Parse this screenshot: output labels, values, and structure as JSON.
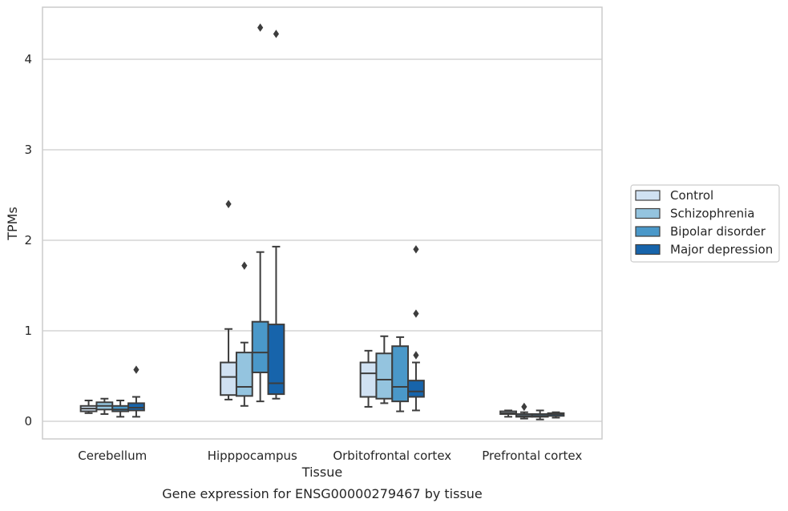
{
  "chart_data": {
    "type": "box",
    "caption": "Gene expression for ENSG00000279467 by tissue",
    "xlabel": "Tissue",
    "ylabel": "TPMs",
    "ylim": [
      -0.19,
      4.6
    ],
    "yticks": [
      0,
      1,
      2,
      3,
      4
    ],
    "grid": "horizontal",
    "legend_position": "right",
    "categories": [
      "Cerebellum",
      "Hipppocampus",
      "Orbitofrontal cortex",
      "Prefrontal cortex"
    ],
    "series": [
      {
        "name": "Control",
        "color": "#d0e1f2",
        "boxes": [
          {
            "low": 0.09,
            "q1": 0.11,
            "median": 0.14,
            "q3": 0.17,
            "high": 0.23,
            "outliers": []
          },
          {
            "low": 0.24,
            "q1": 0.29,
            "median": 0.49,
            "q3": 0.65,
            "high": 1.02,
            "outliers": [
              2.4
            ]
          },
          {
            "low": 0.16,
            "q1": 0.27,
            "median": 0.53,
            "q3": 0.65,
            "high": 0.78,
            "outliers": []
          },
          {
            "low": 0.05,
            "q1": 0.08,
            "median": 0.09,
            "q3": 0.11,
            "high": 0.12,
            "outliers": []
          }
        ]
      },
      {
        "name": "Schizophrenia",
        "color": "#94c4df",
        "boxes": [
          {
            "low": 0.08,
            "q1": 0.13,
            "median": 0.17,
            "q3": 0.21,
            "high": 0.25,
            "outliers": []
          },
          {
            "low": 0.17,
            "q1": 0.28,
            "median": 0.38,
            "q3": 0.76,
            "high": 0.87,
            "outliers": [
              1.72
            ]
          },
          {
            "low": 0.2,
            "q1": 0.25,
            "median": 0.46,
            "q3": 0.75,
            "high": 0.94,
            "outliers": []
          },
          {
            "low": 0.03,
            "q1": 0.05,
            "median": 0.06,
            "q3": 0.08,
            "high": 0.1,
            "outliers": [
              0.16
            ]
          }
        ]
      },
      {
        "name": "Bipolar disorder",
        "color": "#4a98c9",
        "boxes": [
          {
            "low": 0.05,
            "q1": 0.11,
            "median": 0.13,
            "q3": 0.17,
            "high": 0.23,
            "outliers": []
          },
          {
            "low": 0.22,
            "q1": 0.54,
            "median": 0.76,
            "q3": 1.1,
            "high": 1.87,
            "outliers": [
              4.35
            ]
          },
          {
            "low": 0.11,
            "q1": 0.22,
            "median": 0.38,
            "q3": 0.83,
            "high": 0.93,
            "outliers": []
          },
          {
            "low": 0.02,
            "q1": 0.05,
            "median": 0.06,
            "q3": 0.08,
            "high": 0.12,
            "outliers": []
          }
        ]
      },
      {
        "name": "Major depression",
        "color": "#1764ab",
        "boxes": [
          {
            "low": 0.05,
            "q1": 0.12,
            "median": 0.15,
            "q3": 0.2,
            "high": 0.27,
            "outliers": [
              0.57
            ]
          },
          {
            "low": 0.25,
            "q1": 0.3,
            "median": 0.42,
            "q3": 1.07,
            "high": 1.93,
            "outliers": [
              4.28
            ]
          },
          {
            "low": 0.12,
            "q1": 0.27,
            "median": 0.33,
            "q3": 0.45,
            "high": 0.65,
            "outliers": [
              1.9,
              1.19,
              0.73
            ]
          },
          {
            "low": 0.04,
            "q1": 0.06,
            "median": 0.08,
            "q3": 0.09,
            "high": 0.1,
            "outliers": []
          }
        ]
      }
    ]
  }
}
